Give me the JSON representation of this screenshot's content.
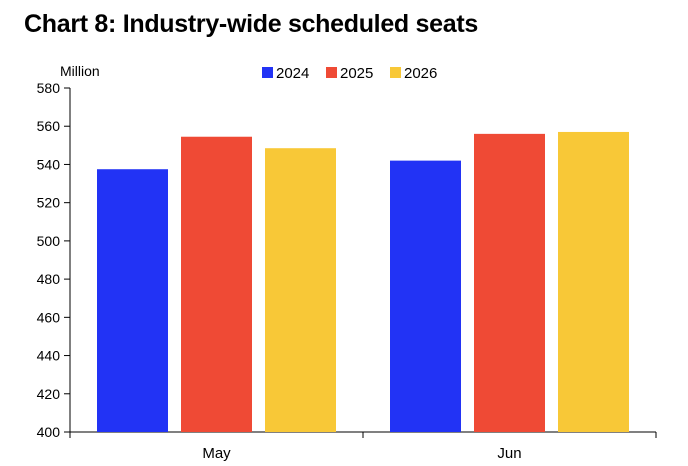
{
  "title": "Chart 8: Industry-wide scheduled seats",
  "chart_data": {
    "type": "bar",
    "title": "Chart 8: Industry-wide scheduled seats",
    "ylabel": "Million",
    "xlabel": "",
    "categories": [
      "May",
      "Jun"
    ],
    "series": [
      {
        "name": "2024",
        "color": "#2233f5",
        "values": [
          537.5,
          542
        ]
      },
      {
        "name": "2025",
        "color": "#ef4a35",
        "values": [
          554.5,
          556
        ]
      },
      {
        "name": "2026",
        "color": "#f8c837",
        "values": [
          548.5,
          557
        ]
      }
    ],
    "ylim": [
      400,
      580
    ],
    "yticks": [
      "400",
      "420",
      "440",
      "460",
      "480",
      "500",
      "520",
      "540",
      "560",
      "580"
    ],
    "grid": false,
    "legend_position": "top"
  }
}
